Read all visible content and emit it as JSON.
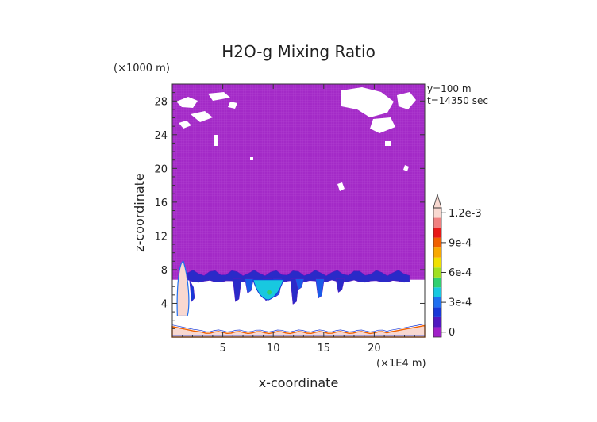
{
  "chart_data": {
    "type": "heatmap",
    "title": "H2O-g Mixing Ratio",
    "xlabel": "x-coordinate",
    "ylabel": "z-coordinate",
    "x_unit": "(×1E4 m)",
    "y_unit": "(×1000 m)",
    "annotations": [
      "y=100 m",
      "t=14350 sec"
    ],
    "xlim": [
      0,
      25
    ],
    "ylim": [
      0,
      30
    ],
    "x_ticks": [
      5,
      10,
      15,
      20
    ],
    "x_tick_labels": [
      "5",
      "10",
      "15",
      "20"
    ],
    "y_ticks": [
      4,
      8,
      12,
      16,
      20,
      24,
      28
    ],
    "y_tick_labels": [
      "4",
      "8",
      "12",
      "16",
      "20",
      "24",
      "28"
    ],
    "colorbar": {
      "levels": [
        0,
        0.0001,
        0.0002,
        0.0003,
        0.0004,
        0.0005,
        0.0006,
        0.0007,
        0.0008,
        0.0009,
        0.001,
        0.0011,
        0.0012
      ],
      "tick_values": [
        0,
        0.0003,
        0.0006,
        0.0009,
        0.0012
      ],
      "tick_labels": [
        "0",
        "3e-4",
        "6e-4",
        "9e-4",
        "1.2e-3"
      ],
      "colors": [
        "#a020c8",
        "#5018c0",
        "#1838d8",
        "#2070f0",
        "#18c8e0",
        "#30d070",
        "#a0e020",
        "#f0e000",
        "#f8a800",
        "#f06000",
        "#e81818",
        "#f08080",
        "#f8d8d0"
      ],
      "extend": "max"
    },
    "regions": [
      {
        "label": "upper layer",
        "value": 0.0,
        "x_range": [
          0,
          25
        ],
        "z_range": [
          7.5,
          30
        ]
      },
      {
        "label": "moist band",
        "value": 0.0003,
        "x_range": [
          1.5,
          23.5
        ],
        "z_range": [
          6.8,
          7.6
        ]
      },
      {
        "label": "plume",
        "value": 0.0004,
        "x_range": [
          8,
          11
        ],
        "z_range": [
          4.5,
          7
        ]
      },
      {
        "label": "left column",
        "value": 0.0012,
        "x_range": [
          0.5,
          1.8
        ],
        "z_range": [
          2.5,
          9
        ]
      },
      {
        "label": "surface layer",
        "value": 0.0012,
        "x_range": [
          0,
          25
        ],
        "z_range": [
          0,
          1
        ]
      }
    ]
  }
}
